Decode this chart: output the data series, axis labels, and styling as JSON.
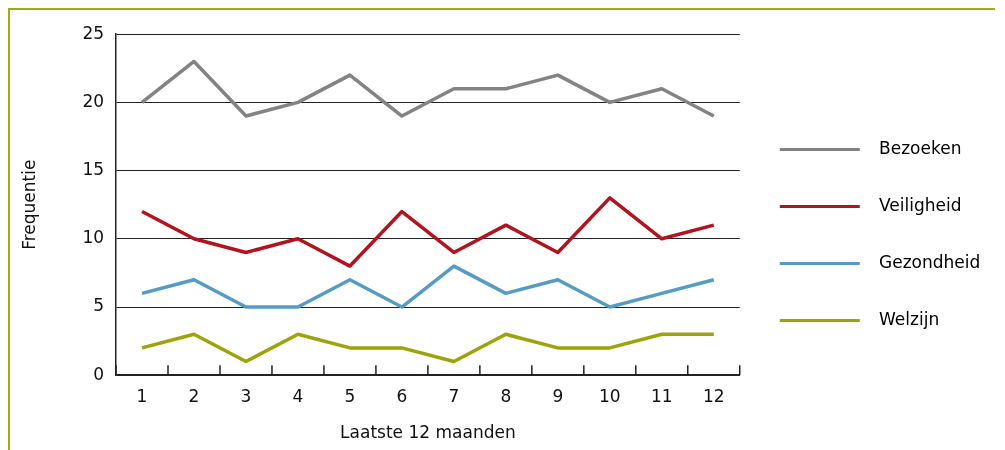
{
  "chart_data": {
    "type": "line",
    "xlabel": "Laatste 12 maanden",
    "ylabel": "Frequentie",
    "x": [
      1,
      2,
      3,
      4,
      5,
      6,
      7,
      8,
      9,
      10,
      11,
      12
    ],
    "series": [
      {
        "name": "Bezoeken",
        "color": "#838385",
        "values": [
          20,
          23,
          19,
          20,
          22,
          19,
          21,
          21,
          22,
          20,
          21,
          19
        ]
      },
      {
        "name": "Veiligheid",
        "color": "#b3121f",
        "values": [
          12,
          10,
          9,
          10,
          8,
          12,
          9,
          11,
          9,
          13,
          10,
          11
        ]
      },
      {
        "name": "Gezondheid",
        "color": "#559cc4",
        "values": [
          6,
          7,
          5,
          5,
          7,
          5,
          8,
          6,
          7,
          5,
          6,
          7
        ]
      },
      {
        "name": "Welzijn",
        "color": "#9da40a",
        "values": [
          2,
          3,
          1,
          3,
          2,
          2,
          1,
          3,
          2,
          2,
          3,
          3
        ]
      }
    ],
    "xlim": [
      0.5,
      12.5
    ],
    "xticks": [
      {
        "value": 0.5,
        "label": null
      },
      1,
      {
        "value": 1.5,
        "label": null
      },
      2,
      {
        "value": 2.5,
        "label": null
      },
      3,
      {
        "value": 3.5,
        "label": null
      },
      4,
      {
        "value": 4.5,
        "label": null
      },
      5,
      {
        "value": 5.5,
        "label": null
      },
      6,
      {
        "value": 6.5,
        "label": null
      },
      7,
      {
        "value": 7.5,
        "label": null
      },
      8,
      {
        "value": 8.5,
        "label": null
      },
      9,
      {
        "value": 9.5,
        "label": null
      },
      10,
      {
        "value": 10.5,
        "label": null
      },
      11,
      {
        "value": 11.5,
        "label": null
      },
      12,
      {
        "value": 12.5,
        "label": null
      }
    ],
    "ylim": [
      0,
      25
    ],
    "yticks": [
      0,
      5,
      10,
      15,
      20,
      25
    ],
    "grid": "y",
    "legend": "right",
    "marker": "none",
    "line_style": "solid"
  }
}
